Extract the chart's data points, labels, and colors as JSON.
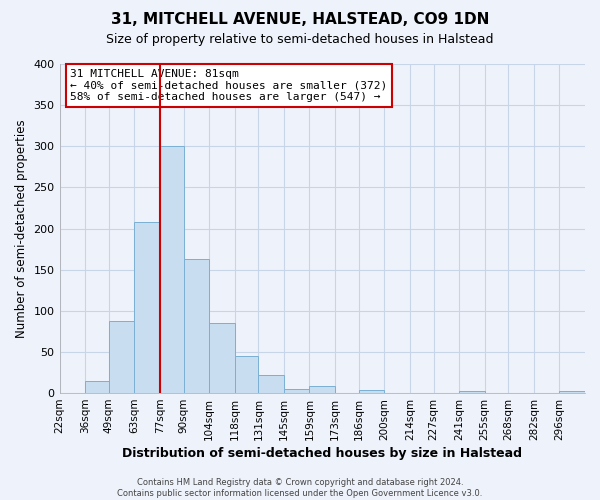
{
  "title": "31, MITCHELL AVENUE, HALSTEAD, CO9 1DN",
  "subtitle": "Size of property relative to semi-detached houses in Halstead",
  "xlabel": "Distribution of semi-detached houses by size in Halstead",
  "ylabel": "Number of semi-detached properties",
  "footer_line1": "Contains HM Land Registry data © Crown copyright and database right 2024.",
  "footer_line2": "Contains public sector information licensed under the Open Government Licence v3.0.",
  "bin_labels": [
    "22sqm",
    "36sqm",
    "49sqm",
    "63sqm",
    "77sqm",
    "90sqm",
    "104sqm",
    "118sqm",
    "131sqm",
    "145sqm",
    "159sqm",
    "173sqm",
    "186sqm",
    "200sqm",
    "214sqm",
    "227sqm",
    "241sqm",
    "255sqm",
    "268sqm",
    "282sqm",
    "296sqm"
  ],
  "bar_heights": [
    0,
    15,
    87,
    208,
    300,
    163,
    85,
    45,
    22,
    5,
    8,
    0,
    4,
    0,
    0,
    0,
    2,
    0,
    0,
    0,
    3
  ],
  "bin_edges": [
    22,
    36,
    49,
    63,
    77,
    90,
    104,
    118,
    131,
    145,
    159,
    173,
    186,
    200,
    214,
    227,
    241,
    255,
    268,
    282,
    296,
    310
  ],
  "bar_color": "#c8ddf0",
  "bar_edge_color": "#7ab0d4",
  "red_line_x": 77,
  "annotation_title": "31 MITCHELL AVENUE: 81sqm",
  "annotation_line1": "← 40% of semi-detached houses are smaller (372)",
  "annotation_line2": "58% of semi-detached houses are larger (547) →",
  "annotation_box_color": "#ffffff",
  "annotation_box_edge": "#cc0000",
  "ylim": [
    0,
    400
  ],
  "yticks": [
    0,
    50,
    100,
    150,
    200,
    250,
    300,
    350,
    400
  ],
  "background_color": "#eef2fa",
  "grid_color": "#c8d4e8",
  "plot_bg_color": "#eef2fa"
}
